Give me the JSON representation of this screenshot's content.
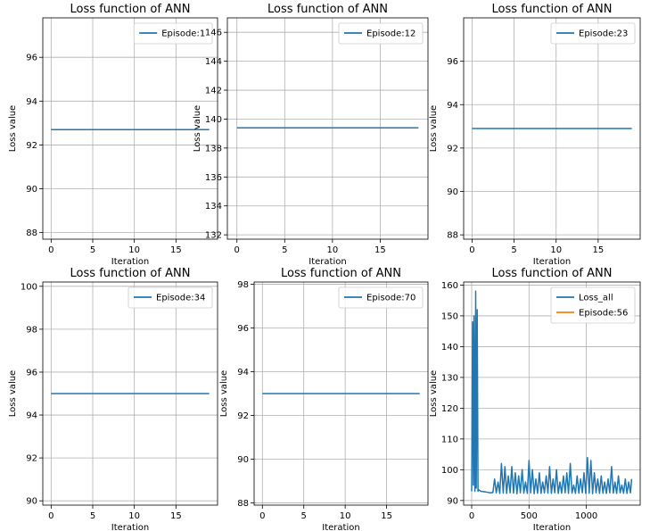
{
  "chart_data": [
    {
      "type": "line",
      "title": "Loss function of ANN",
      "xlabel": "Iteration",
      "ylabel": "Loss value",
      "xlim": [
        -1,
        20
      ],
      "ylim": [
        87.7,
        97.8
      ],
      "xticks": [
        0,
        5,
        10,
        15
      ],
      "yticks": [
        88,
        90,
        92,
        94,
        96
      ],
      "grid": true,
      "legend_position": "upper-right",
      "series": [
        {
          "name": "Episode:1",
          "color": "#1f77b4",
          "x": [
            0,
            1,
            2,
            3,
            4,
            5,
            6,
            7,
            8,
            9,
            10,
            11,
            12,
            13,
            14,
            15,
            16,
            17,
            18,
            19
          ],
          "y": [
            92.7,
            92.7,
            92.7,
            92.7,
            92.7,
            92.7,
            92.7,
            92.7,
            92.7,
            92.7,
            92.7,
            92.7,
            92.7,
            92.7,
            92.7,
            92.7,
            92.7,
            92.7,
            92.7,
            92.7
          ]
        }
      ]
    },
    {
      "type": "line",
      "title": "Loss function of ANN",
      "xlabel": "Iteration",
      "ylabel": "Loss value",
      "xlim": [
        -1,
        20
      ],
      "ylim": [
        131.7,
        147.0
      ],
      "xticks": [
        0,
        5,
        10,
        15
      ],
      "yticks": [
        132,
        134,
        136,
        138,
        140,
        142,
        144,
        146
      ],
      "grid": true,
      "legend_position": "upper-right",
      "series": [
        {
          "name": "Episode:12",
          "color": "#1f77b4",
          "x": [
            0,
            1,
            2,
            3,
            4,
            5,
            6,
            7,
            8,
            9,
            10,
            11,
            12,
            13,
            14,
            15,
            16,
            17,
            18,
            19
          ],
          "y": [
            139.4,
            139.4,
            139.4,
            139.4,
            139.4,
            139.4,
            139.4,
            139.4,
            139.4,
            139.4,
            139.4,
            139.4,
            139.4,
            139.4,
            139.4,
            139.4,
            139.4,
            139.4,
            139.4,
            139.4
          ]
        }
      ]
    },
    {
      "type": "line",
      "title": "Loss function of ANN",
      "xlabel": "Iteration",
      "ylabel": "Loss value",
      "xlim": [
        -1,
        20
      ],
      "ylim": [
        87.8,
        98.0
      ],
      "xticks": [
        0,
        5,
        10,
        15
      ],
      "yticks": [
        88,
        90,
        92,
        94,
        96
      ],
      "grid": true,
      "legend_position": "upper-right",
      "series": [
        {
          "name": "Episode:23",
          "color": "#1f77b4",
          "x": [
            0,
            1,
            2,
            3,
            4,
            5,
            6,
            7,
            8,
            9,
            10,
            11,
            12,
            13,
            14,
            15,
            16,
            17,
            18,
            19
          ],
          "y": [
            92.9,
            92.9,
            92.9,
            92.9,
            92.9,
            92.9,
            92.9,
            92.9,
            92.9,
            92.9,
            92.9,
            92.9,
            92.9,
            92.9,
            92.9,
            92.9,
            92.9,
            92.9,
            92.9,
            92.9
          ]
        }
      ]
    },
    {
      "type": "line",
      "title": "Loss function of ANN",
      "xlabel": "Iteration",
      "ylabel": "Loss value",
      "xlim": [
        -1,
        20
      ],
      "ylim": [
        89.8,
        100.2
      ],
      "xticks": [
        0,
        5,
        10,
        15
      ],
      "yticks": [
        90,
        92,
        94,
        96,
        98,
        100
      ],
      "grid": true,
      "legend_position": "upper-right",
      "series": [
        {
          "name": "Episode:34",
          "color": "#1f77b4",
          "x": [
            0,
            1,
            2,
            3,
            4,
            5,
            6,
            7,
            8,
            9,
            10,
            11,
            12,
            13,
            14,
            15,
            16,
            17,
            18,
            19
          ],
          "y": [
            95.0,
            95.0,
            95.0,
            95.0,
            95.0,
            95.0,
            95.0,
            95.0,
            95.0,
            95.0,
            95.0,
            95.0,
            95.0,
            95.0,
            95.0,
            95.0,
            95.0,
            95.0,
            95.0,
            95.0
          ]
        }
      ]
    },
    {
      "type": "line",
      "title": "Loss function of ANN",
      "xlabel": "Iteration",
      "ylabel": "Loss value",
      "xlim": [
        -1,
        20
      ],
      "ylim": [
        87.9,
        98.1
      ],
      "xticks": [
        0,
        5,
        10,
        15
      ],
      "yticks": [
        88,
        90,
        92,
        94,
        96,
        98
      ],
      "grid": true,
      "legend_position": "upper-right",
      "series": [
        {
          "name": "Episode:70",
          "color": "#1f77b4",
          "x": [
            0,
            1,
            2,
            3,
            4,
            5,
            6,
            7,
            8,
            9,
            10,
            11,
            12,
            13,
            14,
            15,
            16,
            17,
            18,
            19
          ],
          "y": [
            93.0,
            93.0,
            93.0,
            93.0,
            93.0,
            93.0,
            93.0,
            93.0,
            93.0,
            93.0,
            93.0,
            93.0,
            93.0,
            93.0,
            93.0,
            93.0,
            93.0,
            93.0,
            93.0,
            93.0
          ]
        }
      ]
    },
    {
      "type": "line",
      "title": "Loss function of ANN",
      "xlabel": "Iteration",
      "ylabel": "Loss value",
      "xlim": [
        -70,
        1470
      ],
      "ylim": [
        88.5,
        161.0
      ],
      "xticks": [
        0,
        500,
        1000
      ],
      "yticks": [
        90,
        100,
        110,
        120,
        130,
        140,
        150,
        160
      ],
      "grid": true,
      "legend_position": "upper-right",
      "series": [
        {
          "name": "Loss_all",
          "color": "#1f77b4",
          "x": [
            0,
            8,
            15,
            20,
            28,
            35,
            40,
            48,
            55,
            60,
            80,
            120,
            160,
            185,
            200,
            215,
            230,
            245,
            260,
            275,
            290,
            305,
            320,
            335,
            350,
            365,
            380,
            395,
            410,
            425,
            440,
            455,
            470,
            485,
            500,
            515,
            530,
            545,
            560,
            575,
            590,
            605,
            620,
            635,
            650,
            665,
            680,
            695,
            710,
            725,
            740,
            755,
            770,
            785,
            800,
            815,
            830,
            845,
            860,
            875,
            890,
            905,
            920,
            935,
            950,
            965,
            980,
            995,
            1010,
            1025,
            1040,
            1055,
            1070,
            1085,
            1100,
            1115,
            1130,
            1145,
            1160,
            1175,
            1190,
            1205,
            1220,
            1235,
            1250,
            1265,
            1280,
            1295,
            1310,
            1325,
            1340,
            1355,
            1370,
            1385,
            1395
          ],
          "y": [
            93,
            148,
            95,
            150,
            93,
            158,
            94,
            152,
            93,
            93.5,
            93,
            92.8,
            92.5,
            92.6,
            97,
            92.5,
            96,
            92.3,
            102,
            92.4,
            101,
            92.3,
            98,
            92.5,
            101,
            92.4,
            99,
            92.2,
            98,
            92.5,
            100,
            92.4,
            96,
            92.3,
            103,
            92.5,
            100,
            92.2,
            97,
            92.4,
            99,
            92.3,
            96,
            92.5,
            98,
            92.4,
            101,
            92.3,
            97,
            92.5,
            100,
            92.3,
            96,
            92.4,
            98,
            92.5,
            99,
            92.3,
            102,
            92.4,
            95,
            92.3,
            98,
            92.4,
            97,
            92.5,
            99,
            92.3,
            104,
            92.4,
            103,
            92.2,
            99,
            92.5,
            97,
            92.3,
            98,
            92.4,
            96,
            92.3,
            97,
            92.5,
            101,
            92.4,
            96,
            92.3,
            98,
            92.5,
            95,
            92.4,
            97,
            92.3,
            96,
            92.5,
            97
          ]
        },
        {
          "name": "Episode:56",
          "color": "#ff7f0e",
          "x": [],
          "y": []
        }
      ]
    }
  ]
}
